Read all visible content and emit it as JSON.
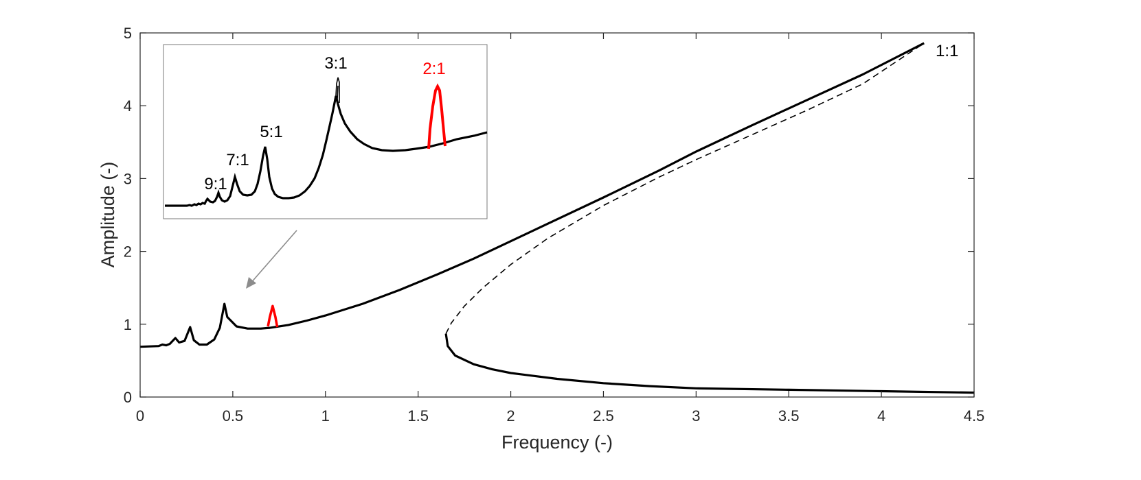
{
  "chart_data": {
    "type": "line",
    "title": "",
    "xlabel": "Frequency (-)",
    "ylabel": "Amplitude (-)",
    "xlim": [
      0,
      4.5
    ],
    "ylim": [
      0,
      5
    ],
    "grid": false,
    "xticks": [
      "0",
      "0.5",
      "1",
      "1.5",
      "2",
      "2.5",
      "3",
      "3.5",
      "4",
      "4.5"
    ],
    "xtick_values": [
      0,
      0.5,
      1,
      1.5,
      2,
      2.5,
      3,
      3.5,
      4,
      4.5
    ],
    "yticks": [
      "0",
      "1",
      "2",
      "3",
      "4",
      "5"
    ],
    "ytick_values": [
      0,
      1,
      2,
      3,
      4,
      5
    ],
    "colors": {
      "main": "#000000",
      "superharmonic_2_1": "#ff0000",
      "arrow": "#8c8c8c",
      "axis": "#262626"
    },
    "series": [
      {
        "style": "solid",
        "color": "#000000",
        "points": [
          [
            0.0,
            0.69
          ],
          [
            0.1,
            0.7
          ],
          [
            0.12,
            0.72
          ],
          [
            0.14,
            0.71
          ],
          [
            0.16,
            0.73
          ],
          [
            0.19,
            0.81
          ],
          [
            0.21,
            0.75
          ],
          [
            0.24,
            0.77
          ],
          [
            0.27,
            0.96
          ],
          [
            0.29,
            0.78
          ],
          [
            0.32,
            0.72
          ],
          [
            0.36,
            0.72
          ],
          [
            0.4,
            0.79
          ],
          [
            0.43,
            0.95
          ],
          [
            0.455,
            1.28
          ],
          [
            0.47,
            1.1
          ],
          [
            0.52,
            0.97
          ],
          [
            0.58,
            0.94
          ],
          [
            0.65,
            0.94
          ],
          [
            0.7,
            0.95
          ],
          [
            0.8,
            0.99
          ],
          [
            0.9,
            1.05
          ],
          [
            1.0,
            1.12
          ],
          [
            1.2,
            1.28
          ],
          [
            1.4,
            1.47
          ],
          [
            1.6,
            1.68
          ],
          [
            1.8,
            1.9
          ],
          [
            2.0,
            2.14
          ],
          [
            2.2,
            2.38
          ],
          [
            2.5,
            2.74
          ],
          [
            2.8,
            3.11
          ],
          [
            3.0,
            3.37
          ],
          [
            3.3,
            3.73
          ],
          [
            3.6,
            4.08
          ],
          [
            3.9,
            4.43
          ],
          [
            4.23,
            4.86
          ]
        ]
      },
      {
        "style": "dashed",
        "color": "#000000",
        "points": [
          [
            1.65,
            0.87
          ],
          [
            1.68,
            1.02
          ],
          [
            1.75,
            1.25
          ],
          [
            1.85,
            1.5
          ],
          [
            2.0,
            1.82
          ],
          [
            2.2,
            2.18
          ],
          [
            2.5,
            2.63
          ],
          [
            2.8,
            3.02
          ],
          [
            3.0,
            3.26
          ],
          [
            3.3,
            3.6
          ],
          [
            3.6,
            3.94
          ],
          [
            3.9,
            4.3
          ],
          [
            4.23,
            4.86
          ]
        ]
      },
      {
        "style": "solid",
        "color": "#000000",
        "points": [
          [
            1.65,
            0.87
          ],
          [
            1.66,
            0.7
          ],
          [
            1.7,
            0.57
          ],
          [
            1.8,
            0.45
          ],
          [
            1.9,
            0.38
          ],
          [
            2.0,
            0.33
          ],
          [
            2.25,
            0.25
          ],
          [
            2.5,
            0.19
          ],
          [
            2.75,
            0.15
          ],
          [
            3.0,
            0.12
          ],
          [
            3.5,
            0.1
          ],
          [
            4.0,
            0.08
          ],
          [
            4.5,
            0.06
          ]
        ]
      },
      {
        "style": "solid",
        "color": "#ff0000",
        "points": [
          [
            0.69,
            0.97
          ],
          [
            0.7,
            1.1
          ],
          [
            0.715,
            1.25
          ],
          [
            0.73,
            1.1
          ],
          [
            0.74,
            0.96
          ]
        ]
      }
    ],
    "annotations": [
      {
        "text": "1:1",
        "color": "#000000"
      },
      {
        "text": "3:1",
        "color": "#000000"
      },
      {
        "text": "2:1",
        "color": "#ff0000"
      },
      {
        "text": "5:1",
        "color": "#000000"
      },
      {
        "text": "7:1",
        "color": "#000000"
      },
      {
        "text": "9:1",
        "color": "#000000"
      }
    ]
  }
}
